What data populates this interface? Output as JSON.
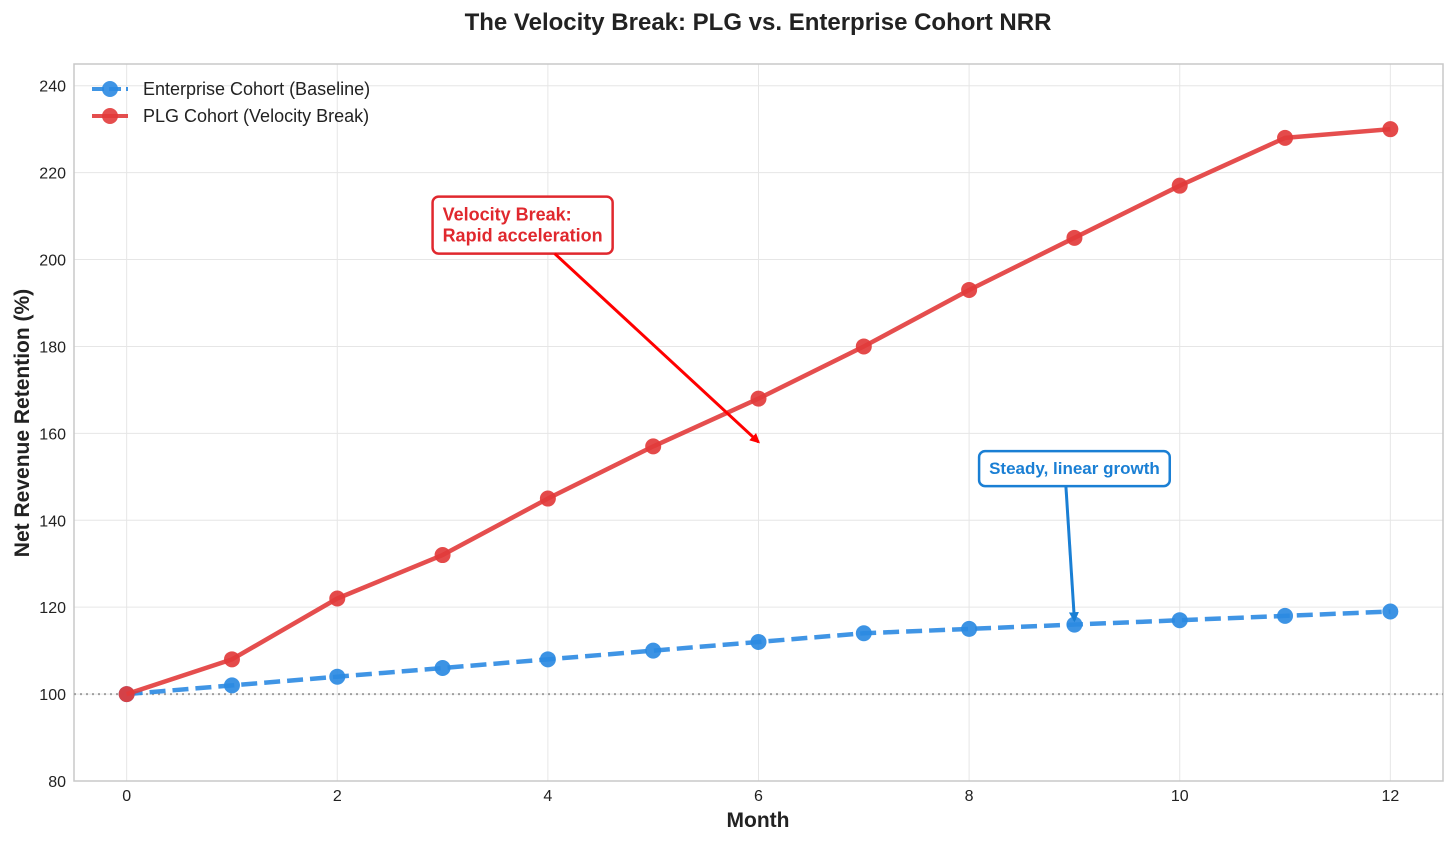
{
  "chart_data": {
    "type": "line",
    "title": "The Velocity Break: PLG vs. Enterprise Cohort NRR",
    "xlabel": "Month",
    "ylabel": "Net Revenue Retention (%)",
    "xlim": [
      -0.5,
      12.5
    ],
    "ylim": [
      80,
      245
    ],
    "xticks": [
      0,
      2,
      4,
      6,
      8,
      10,
      12
    ],
    "yticks": [
      80,
      100,
      120,
      140,
      160,
      180,
      200,
      220,
      240
    ],
    "grid": true,
    "legend_position": "top-left",
    "x": [
      0,
      1,
      2,
      3,
      4,
      5,
      6,
      7,
      8,
      9,
      10,
      11,
      12
    ],
    "baseline": 100,
    "series": [
      {
        "name": "Enterprise Cohort (Baseline)",
        "values": [
          100,
          102,
          104,
          106,
          108,
          110,
          112,
          114,
          115,
          116,
          117,
          118,
          119
        ],
        "color": "#2b8ae2",
        "line_style": "dashed"
      },
      {
        "name": "PLG Cohort (Velocity Break)",
        "values": [
          100,
          108,
          122,
          132,
          145,
          157,
          168,
          180,
          193,
          205,
          217,
          228,
          230
        ],
        "color": "#e23b3b",
        "line_style": "solid"
      }
    ],
    "annotations": [
      {
        "lines": [
          "Velocity Break:",
          "Rapid acceleration"
        ],
        "text_x": 3.0,
        "text_y": 208,
        "arrow_x": 6.0,
        "arrow_y": 158,
        "color": "#e0282e",
        "arrow_color": "#ff0000"
      },
      {
        "lines": [
          "Steady, linear growth"
        ],
        "text_x": 9.0,
        "text_y": 152,
        "arrow_x": 9.0,
        "arrow_y": 117,
        "color": "#1a7fd4",
        "arrow_color": "#1a7fd4"
      }
    ]
  }
}
